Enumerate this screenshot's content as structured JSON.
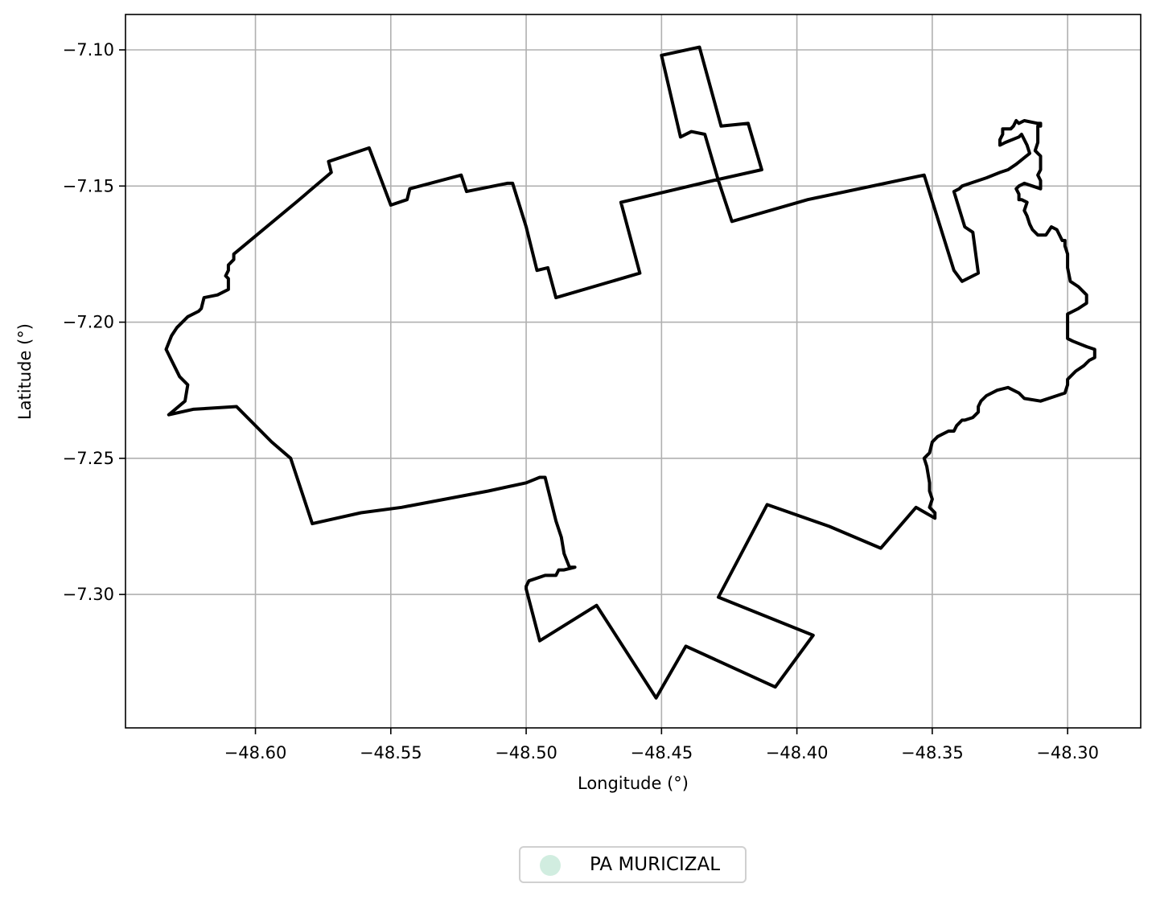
{
  "chart_data": {
    "type": "map",
    "xlabel": "Longitude (°)",
    "ylabel": "Latitude (°)",
    "xlim": [
      -48.648,
      -48.273
    ],
    "ylim": [
      -7.349,
      -7.087
    ],
    "grid": true,
    "xticks": [
      -48.6,
      -48.55,
      -48.5,
      -48.45,
      -48.4,
      -48.35,
      -48.3
    ],
    "yticks": [
      -7.1,
      -7.15,
      -7.2,
      -7.25,
      -7.3
    ],
    "xtick_labels": [
      "−48.60",
      "−48.55",
      "−48.50",
      "−48.45",
      "−48.40",
      "−48.35",
      "−48.30"
    ],
    "ytick_labels": [
      "−7.10",
      "−7.15",
      "−7.20",
      "−7.25",
      "−7.30"
    ],
    "legend": {
      "placement": "bottom-center",
      "entries": [
        {
          "label": "PA MURICIZAL",
          "color": "#d1ede0"
        }
      ]
    },
    "boundary_color": "#000000",
    "boundary": [
      [
        -48.45,
        -7.102
      ],
      [
        -48.436,
        -7.099
      ],
      [
        -48.428,
        -7.128
      ],
      [
        -48.418,
        -7.127
      ],
      [
        -48.413,
        -7.144
      ],
      [
        -48.431,
        -7.148
      ],
      [
        -48.465,
        -7.156
      ],
      [
        -48.458,
        -7.182
      ],
      [
        -48.489,
        -7.191
      ],
      [
        -48.492,
        -7.18
      ],
      [
        -48.496,
        -7.181
      ],
      [
        -48.5,
        -7.165
      ],
      [
        -48.505,
        -7.149
      ],
      [
        -48.507,
        -7.149
      ],
      [
        -48.522,
        -7.152
      ],
      [
        -48.524,
        -7.146
      ],
      [
        -48.543,
        -7.151
      ],
      [
        -48.544,
        -7.155
      ],
      [
        -48.55,
        -7.157
      ],
      [
        -48.558,
        -7.136
      ],
      [
        -48.573,
        -7.141
      ],
      [
        -48.572,
        -7.145
      ],
      [
        -48.585,
        -7.156
      ],
      [
        -48.608,
        -7.175
      ],
      [
        -48.608,
        -7.177
      ],
      [
        -48.61,
        -7.179
      ],
      [
        -48.61,
        -7.181
      ],
      [
        -48.611,
        -7.183
      ],
      [
        -48.61,
        -7.184
      ],
      [
        -48.61,
        -7.188
      ],
      [
        -48.614,
        -7.19
      ],
      [
        -48.619,
        -7.191
      ],
      [
        -48.62,
        -7.195
      ],
      [
        -48.621,
        -7.196
      ],
      [
        -48.625,
        -7.198
      ],
      [
        -48.629,
        -7.202
      ],
      [
        -48.631,
        -7.205
      ],
      [
        -48.633,
        -7.21
      ],
      [
        -48.631,
        -7.214
      ],
      [
        -48.628,
        -7.22
      ],
      [
        -48.625,
        -7.223
      ],
      [
        -48.626,
        -7.229
      ],
      [
        -48.632,
        -7.234
      ],
      [
        -48.623,
        -7.232
      ],
      [
        -48.607,
        -7.231
      ],
      [
        -48.594,
        -7.244
      ],
      [
        -48.587,
        -7.25
      ],
      [
        -48.579,
        -7.274
      ],
      [
        -48.561,
        -7.27
      ],
      [
        -48.546,
        -7.268
      ],
      [
        -48.514,
        -7.262
      ],
      [
        -48.5,
        -7.259
      ],
      [
        -48.495,
        -7.257
      ],
      [
        -48.493,
        -7.257
      ],
      [
        -48.489,
        -7.273
      ],
      [
        -48.487,
        -7.279
      ],
      [
        -48.486,
        -7.285
      ],
      [
        -48.484,
        -7.29
      ],
      [
        -48.482,
        -7.29
      ],
      [
        -48.486,
        -7.291
      ],
      [
        -48.488,
        -7.291
      ],
      [
        -48.489,
        -7.293
      ],
      [
        -48.492,
        -7.293
      ],
      [
        -48.493,
        -7.293
      ],
      [
        -48.496,
        -7.294
      ],
      [
        -48.499,
        -7.295
      ],
      [
        -48.5,
        -7.297
      ],
      [
        -48.5,
        -7.298
      ],
      [
        -48.495,
        -7.317
      ],
      [
        -48.474,
        -7.304
      ],
      [
        -48.452,
        -7.338
      ],
      [
        -48.441,
        -7.319
      ],
      [
        -48.408,
        -7.334
      ],
      [
        -48.394,
        -7.315
      ],
      [
        -48.429,
        -7.301
      ],
      [
        -48.411,
        -7.267
      ],
      [
        -48.388,
        -7.275
      ],
      [
        -48.369,
        -7.283
      ],
      [
        -48.356,
        -7.268
      ],
      [
        -48.349,
        -7.272
      ],
      [
        -48.349,
        -7.27
      ],
      [
        -48.351,
        -7.268
      ],
      [
        -48.35,
        -7.265
      ],
      [
        -48.351,
        -7.262
      ],
      [
        -48.351,
        -7.259
      ],
      [
        -48.352,
        -7.253
      ],
      [
        -48.353,
        -7.25
      ],
      [
        -48.351,
        -7.248
      ],
      [
        -48.35,
        -7.244
      ],
      [
        -48.348,
        -7.242
      ],
      [
        -48.344,
        -7.24
      ],
      [
        -48.342,
        -7.24
      ],
      [
        -48.341,
        -7.238
      ],
      [
        -48.339,
        -7.236
      ],
      [
        -48.338,
        -7.236
      ],
      [
        -48.335,
        -7.235
      ],
      [
        -48.333,
        -7.233
      ],
      [
        -48.333,
        -7.231
      ],
      [
        -48.332,
        -7.229
      ],
      [
        -48.33,
        -7.227
      ],
      [
        -48.326,
        -7.225
      ],
      [
        -48.322,
        -7.224
      ],
      [
        -48.318,
        -7.226
      ],
      [
        -48.316,
        -7.228
      ],
      [
        -48.31,
        -7.229
      ],
      [
        -48.304,
        -7.227
      ],
      [
        -48.301,
        -7.226
      ],
      [
        -48.3,
        -7.223
      ],
      [
        -48.3,
        -7.221
      ],
      [
        -48.297,
        -7.218
      ],
      [
        -48.294,
        -7.216
      ],
      [
        -48.292,
        -7.214
      ],
      [
        -48.29,
        -7.213
      ],
      [
        -48.29,
        -7.21
      ],
      [
        -48.293,
        -7.209
      ],
      [
        -48.298,
        -7.207
      ],
      [
        -48.3,
        -7.206
      ],
      [
        -48.3,
        -7.203
      ],
      [
        -48.3,
        -7.197
      ],
      [
        -48.298,
        -7.196
      ],
      [
        -48.296,
        -7.195
      ],
      [
        -48.293,
        -7.193
      ],
      [
        -48.293,
        -7.19
      ],
      [
        -48.296,
        -7.187
      ],
      [
        -48.299,
        -7.185
      ],
      [
        -48.3,
        -7.18
      ],
      [
        -48.3,
        -7.175
      ],
      [
        -48.301,
        -7.172
      ],
      [
        -48.301,
        -7.17
      ],
      [
        -48.302,
        -7.17
      ],
      [
        -48.304,
        -7.166
      ],
      [
        -48.306,
        -7.165
      ],
      [
        -48.308,
        -7.168
      ],
      [
        -48.309,
        -7.168
      ],
      [
        -48.311,
        -7.168
      ],
      [
        -48.313,
        -7.166
      ],
      [
        -48.314,
        -7.164
      ],
      [
        -48.315,
        -7.161
      ],
      [
        -48.316,
        -7.159
      ],
      [
        -48.315,
        -7.156
      ],
      [
        -48.317,
        -7.155
      ],
      [
        -48.318,
        -7.155
      ],
      [
        -48.318,
        -7.153
      ],
      [
        -48.319,
        -7.151
      ],
      [
        -48.318,
        -7.15
      ],
      [
        -48.316,
        -7.149
      ],
      [
        -48.313,
        -7.15
      ],
      [
        -48.31,
        -7.151
      ],
      [
        -48.31,
        -7.148
      ],
      [
        -48.311,
        -7.146
      ],
      [
        -48.31,
        -7.144
      ],
      [
        -48.31,
        -7.141
      ],
      [
        -48.31,
        -7.139
      ],
      [
        -48.311,
        -7.138
      ],
      [
        -48.312,
        -7.137
      ],
      [
        -48.311,
        -7.134
      ],
      [
        -48.311,
        -7.132
      ],
      [
        -48.311,
        -7.13
      ],
      [
        -48.311,
        -7.128
      ],
      [
        -48.31,
        -7.128
      ],
      [
        -48.31,
        -7.127
      ],
      [
        -48.311,
        -7.127
      ],
      [
        -48.316,
        -7.126
      ],
      [
        -48.318,
        -7.127
      ],
      [
        -48.319,
        -7.126
      ],
      [
        -48.32,
        -7.128
      ],
      [
        -48.321,
        -7.129
      ],
      [
        -48.324,
        -7.129
      ],
      [
        -48.324,
        -7.131
      ],
      [
        -48.325,
        -7.133
      ],
      [
        -48.325,
        -7.135
      ],
      [
        -48.323,
        -7.134
      ],
      [
        -48.318,
        -7.132
      ],
      [
        -48.317,
        -7.131
      ],
      [
        -48.315,
        -7.135
      ],
      [
        -48.314,
        -7.138
      ],
      [
        -48.319,
        -7.142
      ],
      [
        -48.322,
        -7.144
      ],
      [
        -48.325,
        -7.145
      ],
      [
        -48.33,
        -7.147
      ],
      [
        -48.336,
        -7.149
      ],
      [
        -48.339,
        -7.15
      ],
      [
        -48.34,
        -7.151
      ],
      [
        -48.342,
        -7.152
      ],
      [
        -48.338,
        -7.165
      ],
      [
        -48.335,
        -7.167
      ],
      [
        -48.333,
        -7.182
      ],
      [
        -48.339,
        -7.185
      ],
      [
        -48.342,
        -7.181
      ],
      [
        -48.353,
        -7.146
      ],
      [
        -48.396,
        -7.155
      ],
      [
        -48.424,
        -7.163
      ],
      [
        -48.429,
        -7.148
      ],
      [
        -48.434,
        -7.131
      ],
      [
        -48.439,
        -7.13
      ],
      [
        -48.443,
        -7.132
      ],
      [
        -48.45,
        -7.102
      ]
    ]
  }
}
